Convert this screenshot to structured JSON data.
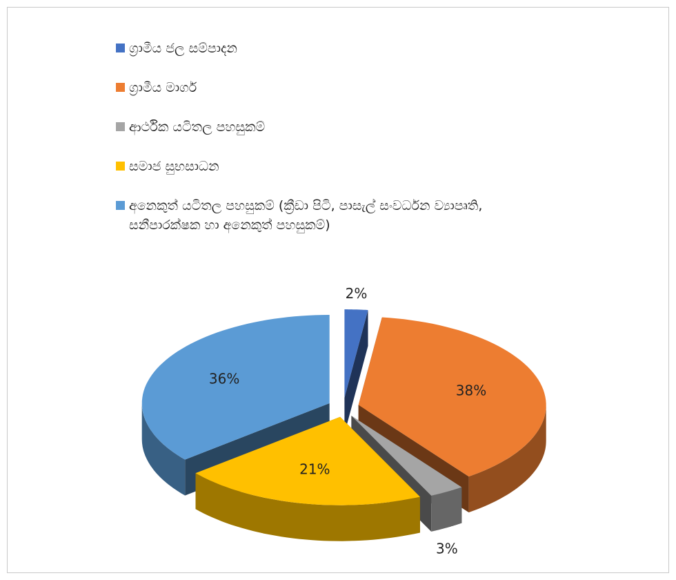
{
  "chart_data": {
    "type": "pie",
    "categories": [
      "ග්‍රාමීය ජල සම්පාදන",
      "ග්‍රාමීය මාර්ග",
      "ආර්ථික යටිතල පහසුකම්",
      "සමාජ සුභසාධන",
      "අනෙකුත් යටිතල පහසුකම් (ක්‍රීඩා පිටි, පාසැල් සංවර්ධන ව්‍යාපෘති, සනීපාරක්ෂක හා අනෙකුත් පහසුකම්)"
    ],
    "values": [
      2,
      38,
      3,
      21,
      36
    ],
    "value_labels": [
      "2%",
      "38%",
      "3%",
      "21%",
      "36%"
    ],
    "colors": [
      "#4472c4",
      "#ed7d31",
      "#a5a5a5",
      "#ffc000",
      "#5b9bd5"
    ],
    "legend": "top"
  }
}
